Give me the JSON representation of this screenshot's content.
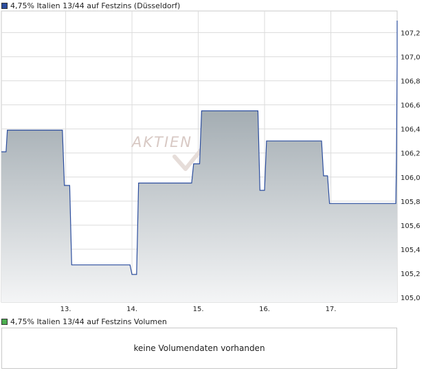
{
  "chart_data": {
    "type": "area",
    "title": "4,75% Italien 13/44 auf Festzins (Düsseldorf)",
    "xlabel": "",
    "ylabel": "",
    "x_tick_labels": [
      "13.",
      "14.",
      "15.",
      "16.",
      "17."
    ],
    "x_tick_positions": [
      1,
      2,
      3,
      4,
      5
    ],
    "xlim": [
      0.03,
      6.0
    ],
    "y_tick_labels": [
      "107,2",
      "107,0",
      "106,8",
      "106,6",
      "106,4",
      "106,2",
      "106,0",
      "105,8",
      "105,6",
      "105,4",
      "105,2",
      "105,0"
    ],
    "y_tick_values": [
      107.2,
      107.0,
      106.8,
      106.6,
      106.4,
      106.2,
      106.0,
      105.8,
      105.6,
      105.4,
      105.2,
      105.0
    ],
    "ylim": [
      104.96,
      107.38
    ],
    "grid": true,
    "series": [
      {
        "x": [
          0.03,
          0.1,
          0.12,
          0.95,
          0.98,
          1.06,
          1.09,
          1.97,
          2.0,
          2.07,
          2.1,
          2.9,
          2.93,
          3.02,
          3.05,
          3.9,
          3.93,
          4.0,
          4.03,
          4.86,
          4.89,
          4.95,
          4.98,
          5.98,
          5.99,
          6.0,
          6.0
        ],
        "y": [
          106.21,
          106.21,
          106.39,
          106.39,
          105.93,
          105.93,
          105.27,
          105.27,
          105.19,
          105.19,
          105.95,
          105.95,
          106.11,
          106.11,
          106.55,
          106.55,
          105.89,
          105.89,
          106.3,
          106.3,
          106.01,
          106.01,
          105.78,
          105.78,
          106.17,
          106.95,
          107.3
        ]
      }
    ],
    "line_color": "#2b4d9e",
    "fill_top_color": "#7e8b93",
    "fill_bottom_color": "#f4f5f6",
    "watermark": "AKTIEN"
  },
  "volume": {
    "title": "4,75% Italien 13/44 auf Festzins Volumen",
    "message": "keine Volumendaten vorhanden",
    "swatch_color": "#4caf50"
  },
  "price_swatch_color": "#2b4d9e"
}
